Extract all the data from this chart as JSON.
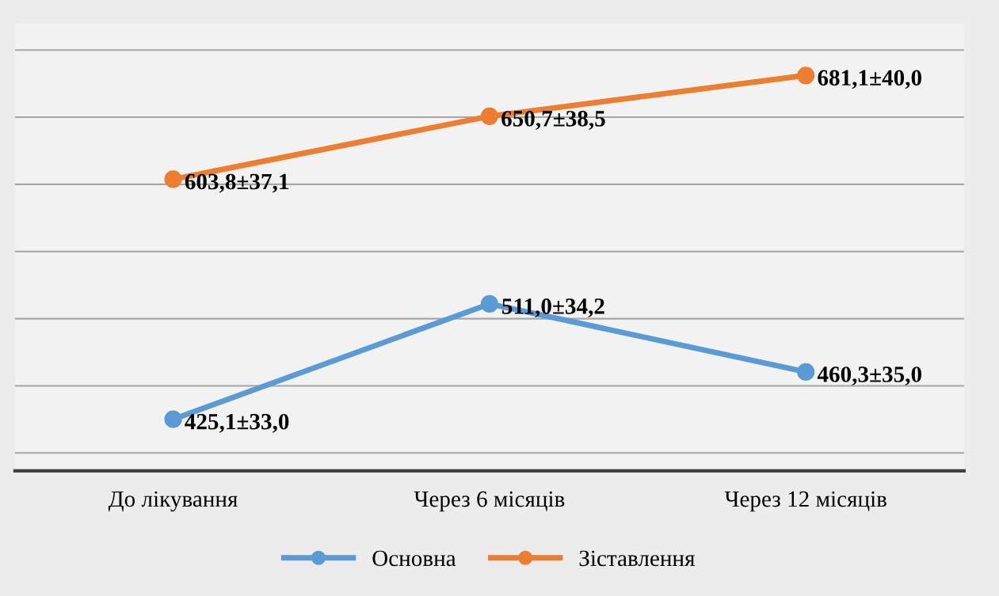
{
  "chart_data": {
    "type": "line",
    "categories": [
      "До лікування",
      "Через 6 місяців",
      "Через 12 місяців"
    ],
    "series": [
      {
        "name": "Основна",
        "color": "#5b9bd5",
        "values": [
          425.1,
          511.0,
          460.3
        ],
        "value_labels": [
          "425,1±33,0",
          "511,0±34,2",
          "460,3±35,0"
        ]
      },
      {
        "name": "Зіставлення",
        "color": "#ed7d31",
        "values": [
          603.8,
          650.7,
          681.1
        ],
        "value_labels": [
          "603,8±37,1",
          "650,7±38,5",
          "681,1±40,0"
        ]
      }
    ],
    "tick_labels": "x",
    "grid": "y",
    "legend": "bottom",
    "marker": "circle",
    "line_style": "solid"
  }
}
